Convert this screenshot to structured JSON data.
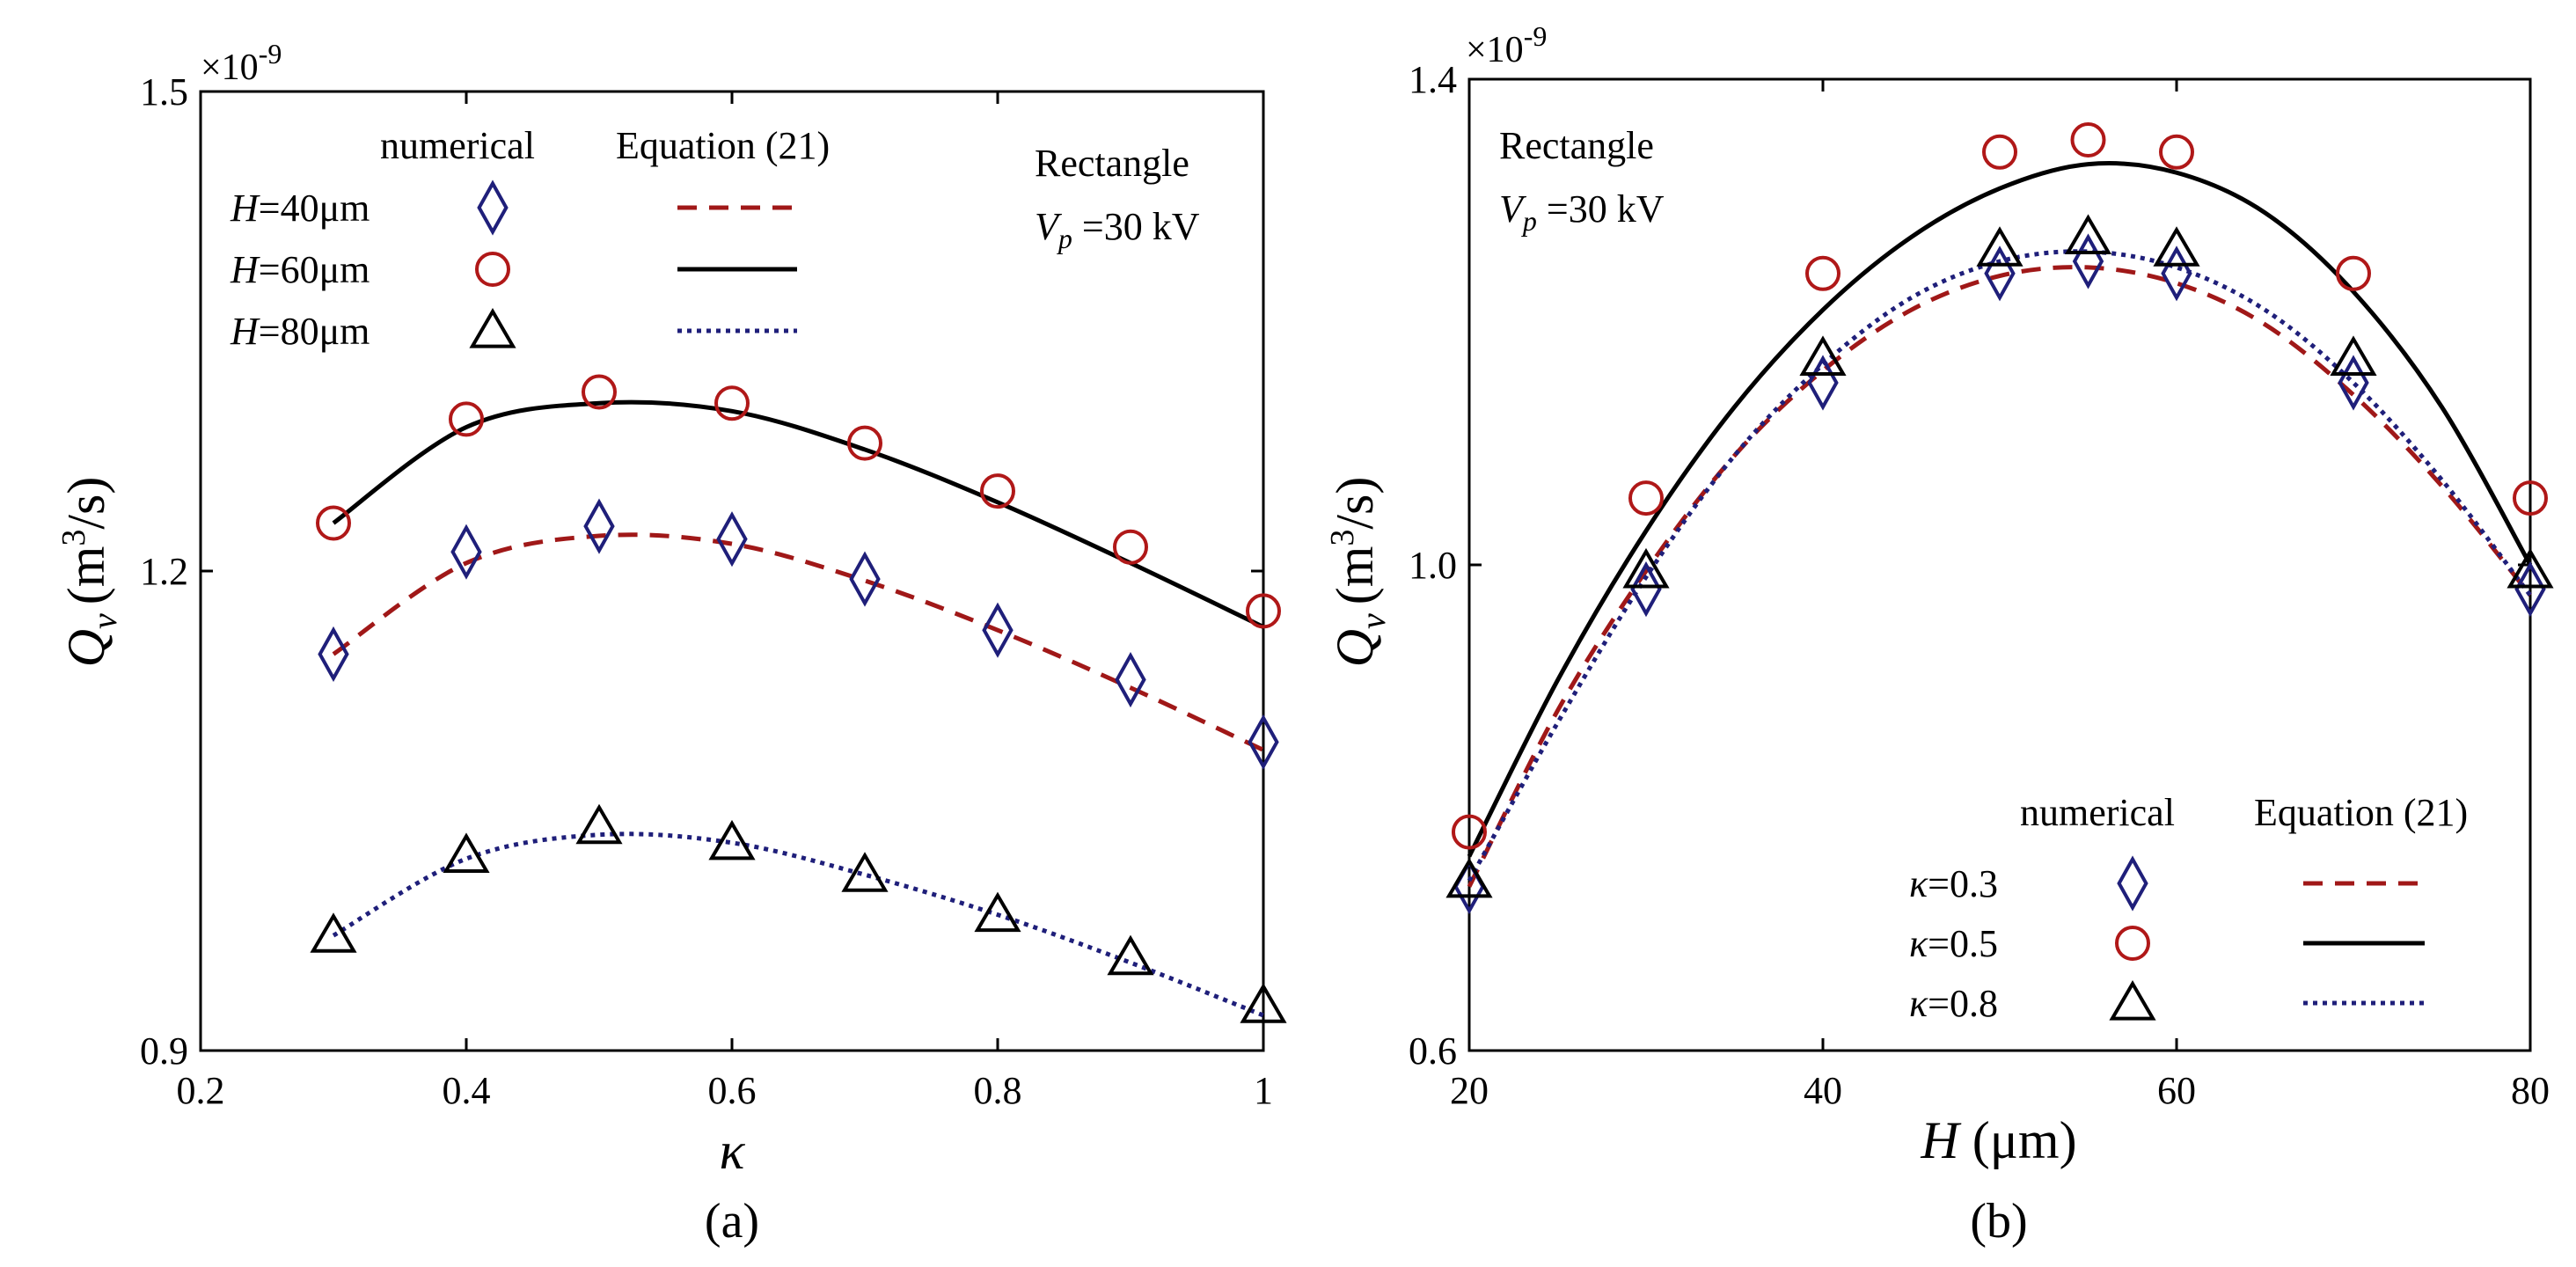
{
  "chart_data": [
    {
      "type": "line",
      "panel_label": "(a)",
      "xlabel": "κ",
      "ylabel_sym": "Q",
      "ylabel_sub": "v",
      "ylabel_unit": "(m",
      "ylabel_unit_exp": "3",
      "ylabel_unit_end": "/s)",
      "sci_prefix": "×10",
      "sci_exp": "-9",
      "xlim": [
        0.2,
        1.0
      ],
      "ylim": [
        0.9,
        1.5
      ],
      "xticks": [
        0.2,
        0.4,
        0.6,
        0.8,
        1.0
      ],
      "xtick_labels": [
        "0.2",
        "0.4",
        "0.6",
        "0.8",
        "1"
      ],
      "yticks": [
        0.9,
        1.2,
        1.5
      ],
      "ytick_labels": [
        "0.9",
        "1.2",
        "1.5"
      ],
      "annotation_line1": "Rectangle",
      "annotation_v": "V",
      "annotation_sub": "p",
      "annotation_rest": " =30 kV",
      "legend_header_numerical": "numerical",
      "legend_header_equation": "Equation (21)",
      "legend_var": "H",
      "series": [
        {
          "name": "=40μm",
          "marker": "diamond",
          "marker_color": "#1f1f7a",
          "line_color": "#a01818",
          "line_style": "dashed",
          "x": [
            0.3,
            0.4,
            0.5,
            0.6,
            0.7,
            0.8,
            0.9,
            1.0
          ],
          "numerical": [
            1.148,
            1.212,
            1.228,
            1.22,
            1.195,
            1.163,
            1.132,
            1.093
          ],
          "equation": [
            1.148,
            1.205,
            1.222,
            1.217,
            1.194,
            1.163,
            1.127,
            1.088
          ]
        },
        {
          "name": "=60μm",
          "marker": "circle",
          "marker_color": "#b01818",
          "line_color": "#000000",
          "line_style": "solid",
          "x": [
            0.3,
            0.4,
            0.5,
            0.6,
            0.7,
            0.8,
            0.9,
            1.0
          ],
          "numerical": [
            1.23,
            1.295,
            1.312,
            1.305,
            1.28,
            1.25,
            1.215,
            1.175
          ],
          "equation": [
            1.23,
            1.29,
            1.305,
            1.3,
            1.276,
            1.243,
            1.205,
            1.165
          ]
        },
        {
          "name": "=80μm",
          "marker": "triangle",
          "marker_color": "#000000",
          "line_color": "#1f1f7a",
          "line_style": "dotted",
          "x": [
            0.3,
            0.4,
            0.5,
            0.6,
            0.7,
            0.8,
            0.9,
            1.0
          ],
          "numerical": [
            0.972,
            1.022,
            1.04,
            1.03,
            1.01,
            0.985,
            0.958,
            0.928
          ],
          "equation": [
            0.972,
            1.02,
            1.035,
            1.03,
            1.01,
            0.985,
            0.955,
            0.922
          ]
        }
      ]
    },
    {
      "type": "line",
      "panel_label": "(b)",
      "xlabel": "H (μm)",
      "ylabel_sym": "Q",
      "ylabel_sub": "v",
      "ylabel_unit": "(m",
      "ylabel_unit_exp": "3",
      "ylabel_unit_end": "/s)",
      "sci_prefix": "×10",
      "sci_exp": "-9",
      "xlim": [
        20,
        80
      ],
      "ylim": [
        0.6,
        1.4
      ],
      "xticks": [
        20,
        40,
        60,
        80
      ],
      "xtick_labels": [
        "20",
        "40",
        "60",
        "80"
      ],
      "yticks": [
        0.6,
        1.0,
        1.4
      ],
      "ytick_labels": [
        "0.6",
        "1.0",
        "1.4"
      ],
      "annotation_line1": "Rectangle",
      "annotation_v": "V",
      "annotation_sub": "p",
      "annotation_rest": " =30 kV",
      "legend_header_numerical": "numerical",
      "legend_header_equation": "Equation (21)",
      "legend_var": "κ",
      "series": [
        {
          "name": "=0.3",
          "marker": "diamond",
          "marker_color": "#1f1f7a",
          "line_color": "#a01818",
          "line_style": "dashed",
          "x": [
            20,
            30,
            40,
            50,
            55,
            60,
            70,
            80
          ],
          "numerical": [
            0.735,
            0.98,
            1.15,
            1.24,
            1.25,
            1.24,
            1.15,
            0.98
          ],
          "equation_x": [
            20,
            25,
            30,
            35,
            40,
            45,
            50,
            55,
            60,
            65,
            70,
            75,
            80
          ],
          "equation": [
            0.735,
            0.88,
            0.995,
            1.09,
            1.16,
            1.21,
            1.238,
            1.245,
            1.232,
            1.198,
            1.14,
            1.065,
            0.975
          ]
        },
        {
          "name": "=0.5",
          "marker": "circle",
          "marker_color": "#b01818",
          "line_color": "#000000",
          "line_style": "solid",
          "x": [
            20,
            30,
            40,
            50,
            55,
            60,
            70,
            80
          ],
          "numerical": [
            0.78,
            1.055,
            1.24,
            1.34,
            1.35,
            1.34,
            1.24,
            1.055
          ],
          "equation_x": [
            20,
            25,
            30,
            35,
            40,
            45,
            50,
            55,
            60,
            65,
            70,
            75,
            80
          ],
          "equation": [
            0.76,
            0.905,
            1.028,
            1.13,
            1.21,
            1.27,
            1.31,
            1.33,
            1.323,
            1.29,
            1.225,
            1.13,
            1.0
          ]
        },
        {
          "name": "=0.8",
          "marker": "triangle",
          "marker_color": "#000000",
          "line_color": "#1f1f7a",
          "line_style": "dotted",
          "x": [
            20,
            30,
            40,
            50,
            55,
            60,
            70,
            80
          ],
          "numerical": [
            0.74,
            0.995,
            1.17,
            1.26,
            1.27,
            1.26,
            1.17,
            0.995
          ],
          "equation_x": [
            20,
            25,
            30,
            35,
            40,
            45,
            50,
            55,
            60,
            65,
            70,
            75,
            80
          ],
          "equation": [
            0.74,
            0.87,
            0.99,
            1.09,
            1.165,
            1.22,
            1.25,
            1.258,
            1.245,
            1.21,
            1.15,
            1.07,
            0.975
          ]
        }
      ]
    }
  ]
}
